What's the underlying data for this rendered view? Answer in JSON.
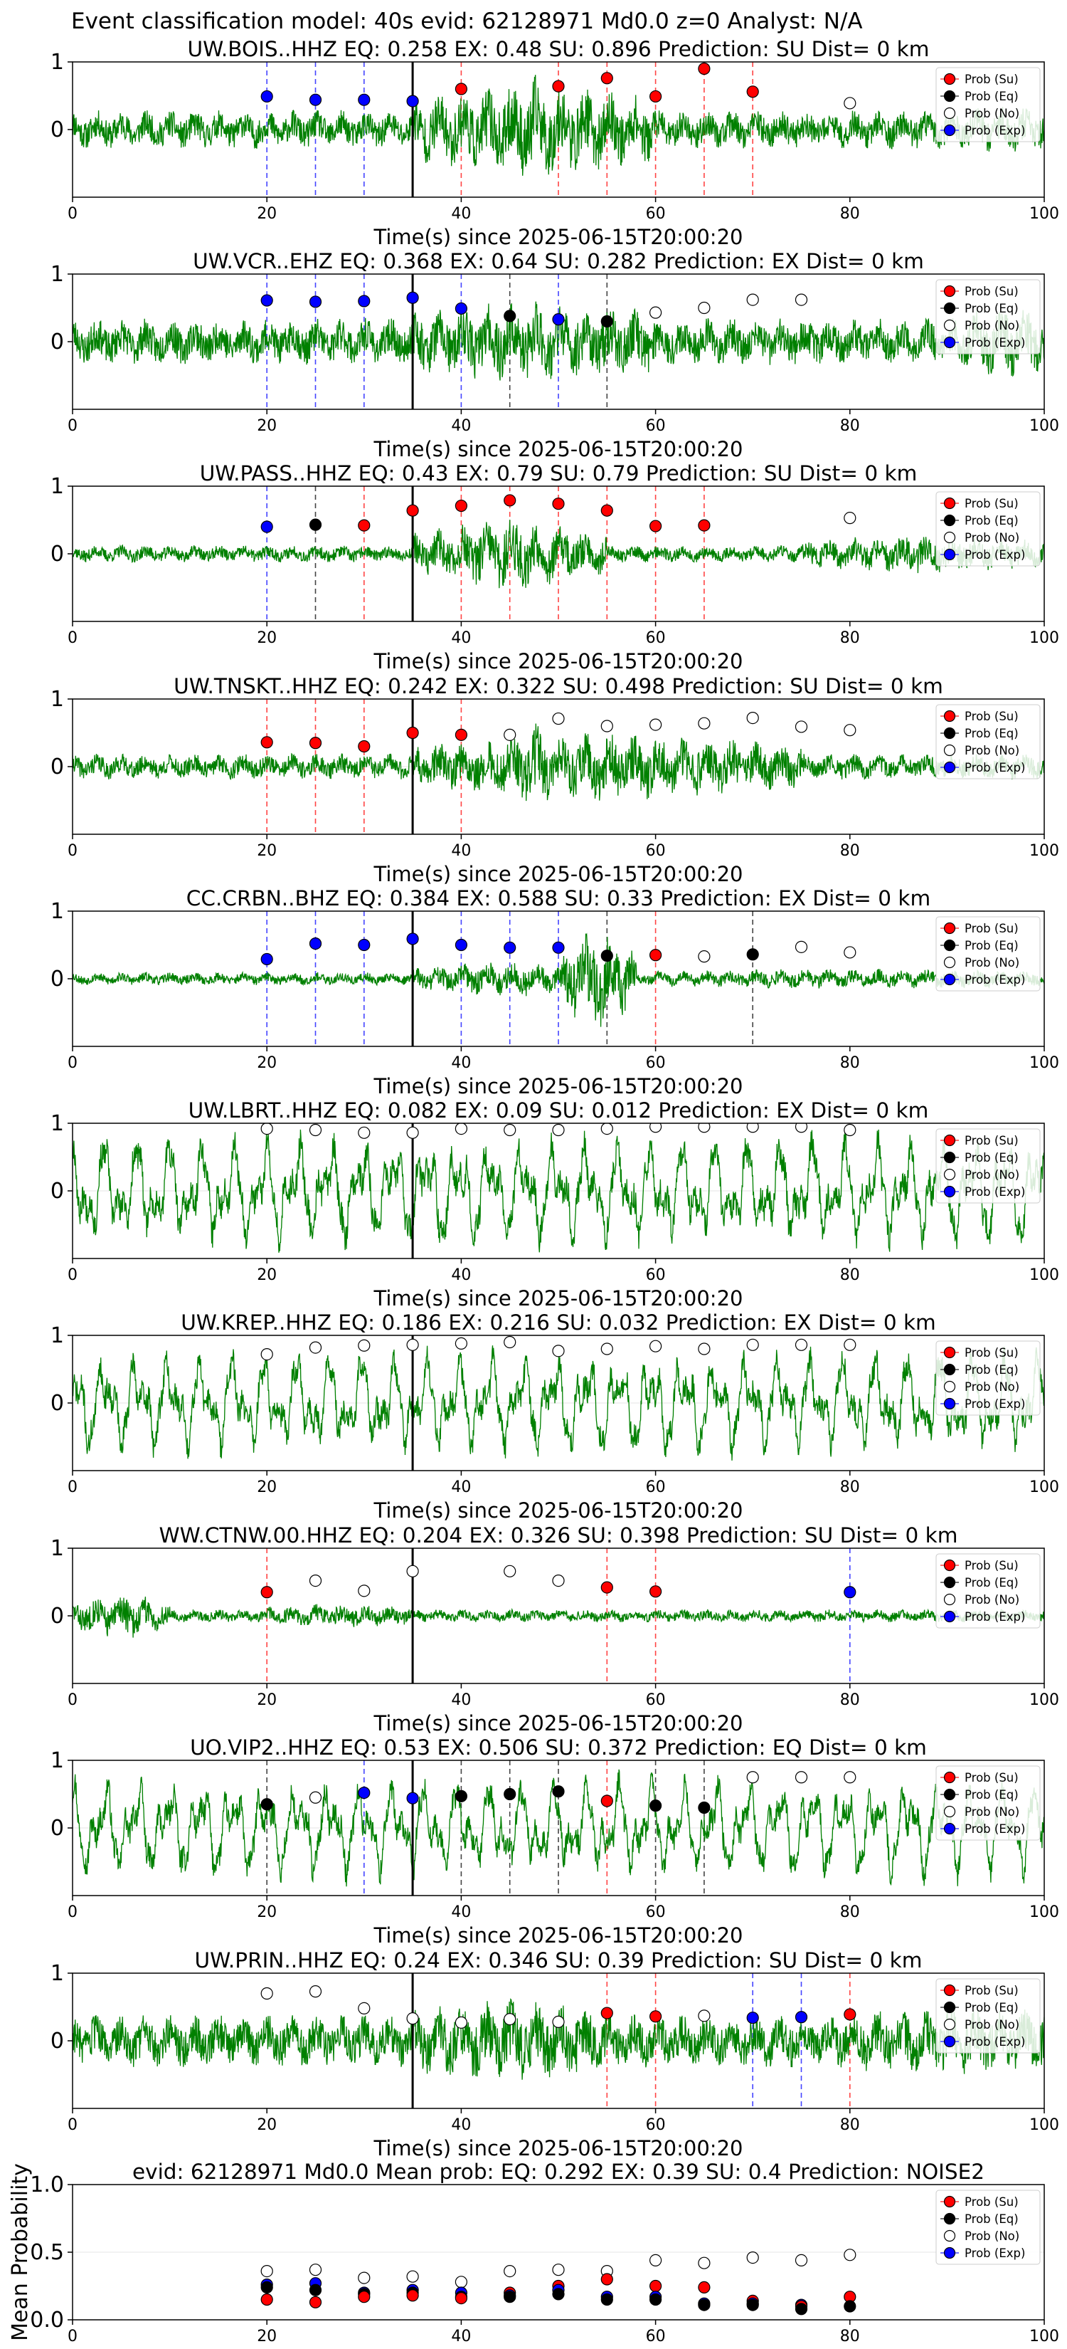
{
  "suptitle": "Event classification model: 40s evid: 62128971 Md0.0 z=0 Analyst: N/A",
  "xlabel": "Time(s) since 2025-06-15T20:00:20",
  "legend": [
    "Prob (Su)",
    "Prob (Eq)",
    "Prob (No)",
    "Prob (Exp)"
  ],
  "colors": {
    "su": "#ff0000",
    "eq": "#000000",
    "no": "#ffffff",
    "exp": "#0000ff",
    "waveform": "#008000",
    "su_line": "#ff4444",
    "eq_line": "#444444",
    "exp_line": "#4444ff"
  },
  "chart_data": [
    {
      "type": "line",
      "title": "UW.BOIS..HHZ   EQ: 0.258  EX: 0.48  SU: 0.896   Prediction: SU    Dist= 0 km",
      "xlim": [
        0,
        100
      ],
      "ylim": [
        -1,
        1
      ],
      "yticks": [
        0,
        1
      ],
      "xticks": [
        0,
        20,
        40,
        60,
        80,
        100
      ],
      "event_line": 35,
      "waveform": {
        "amp": 0.18,
        "seed": 11,
        "bursts": [
          [
            35,
            60,
            2.6
          ],
          [
            45,
            50,
            3.0
          ],
          [
            92,
            100,
            1.2
          ]
        ]
      },
      "points": [
        [
          20,
          0.49,
          "exp"
        ],
        [
          25,
          0.44,
          "exp"
        ],
        [
          30,
          0.44,
          "exp"
        ],
        [
          35,
          0.42,
          "exp"
        ],
        [
          40,
          0.6,
          "su"
        ],
        [
          50,
          0.64,
          "su"
        ],
        [
          55,
          0.76,
          "su"
        ],
        [
          60,
          0.49,
          "su"
        ],
        [
          65,
          0.9,
          "su"
        ],
        [
          70,
          0.56,
          "su"
        ],
        [
          80,
          0.39,
          "no"
        ]
      ]
    },
    {
      "type": "line",
      "title": "UW.VCR..EHZ   EQ: 0.368  EX: 0.64  SU: 0.282   Prediction: EX    Dist= 0 km",
      "xlim": [
        0,
        100
      ],
      "ylim": [
        -1,
        1
      ],
      "yticks": [
        0,
        1
      ],
      "xticks": [
        0,
        20,
        40,
        60,
        80,
        100
      ],
      "event_line": 35,
      "waveform": {
        "amp": 0.22,
        "seed": 23,
        "bursts": [
          [
            35,
            60,
            1.8
          ],
          [
            92,
            100,
            1.6
          ]
        ]
      },
      "points": [
        [
          20,
          0.61,
          "exp"
        ],
        [
          25,
          0.59,
          "exp"
        ],
        [
          30,
          0.6,
          "exp"
        ],
        [
          35,
          0.65,
          "exp"
        ],
        [
          40,
          0.49,
          "exp"
        ],
        [
          45,
          0.38,
          "eq"
        ],
        [
          50,
          0.33,
          "exp"
        ],
        [
          55,
          0.3,
          "eq"
        ],
        [
          60,
          0.43,
          "no"
        ],
        [
          65,
          0.5,
          "no"
        ],
        [
          70,
          0.62,
          "no"
        ],
        [
          75,
          0.62,
          "no"
        ]
      ]
    },
    {
      "type": "line",
      "title": "UW.PASS..HHZ   EQ: 0.43  EX: 0.79  SU: 0.79   Prediction: SU    Dist= 0 km",
      "xlim": [
        0,
        100
      ],
      "ylim": [
        -1,
        1
      ],
      "yticks": [
        0,
        1
      ],
      "xticks": [
        0,
        20,
        40,
        60,
        80,
        100
      ],
      "event_line": 35,
      "waveform": {
        "amp": 0.08,
        "seed": 37,
        "bursts": [
          [
            35,
            55,
            4.5
          ],
          [
            75,
            100,
            2.5
          ]
        ]
      },
      "points": [
        [
          20,
          0.4,
          "exp"
        ],
        [
          25,
          0.43,
          "eq"
        ],
        [
          30,
          0.42,
          "su"
        ],
        [
          35,
          0.64,
          "su"
        ],
        [
          40,
          0.71,
          "su"
        ],
        [
          45,
          0.79,
          "su"
        ],
        [
          50,
          0.74,
          "su"
        ],
        [
          55,
          0.64,
          "su"
        ],
        [
          60,
          0.41,
          "su"
        ],
        [
          65,
          0.42,
          "su"
        ],
        [
          80,
          0.53,
          "no"
        ]
      ]
    },
    {
      "type": "line",
      "title": "UW.TNSKT..HHZ   EQ: 0.242  EX: 0.322  SU: 0.498   Prediction: SU    Dist= 0 km",
      "xlim": [
        0,
        100
      ],
      "ylim": [
        -1,
        1
      ],
      "yticks": [
        0,
        1
      ],
      "xticks": [
        0,
        20,
        40,
        60,
        80,
        100
      ],
      "event_line": 35,
      "waveform": {
        "amp": 0.12,
        "seed": 41,
        "bursts": [
          [
            35,
            75,
            2.8
          ],
          [
            45,
            50,
            3.5
          ]
        ]
      },
      "points": [
        [
          20,
          0.36,
          "su"
        ],
        [
          25,
          0.35,
          "su"
        ],
        [
          30,
          0.3,
          "su"
        ],
        [
          35,
          0.5,
          "su"
        ],
        [
          40,
          0.47,
          "su"
        ],
        [
          45,
          0.47,
          "no"
        ],
        [
          50,
          0.71,
          "no"
        ],
        [
          55,
          0.6,
          "no"
        ],
        [
          60,
          0.62,
          "no"
        ],
        [
          65,
          0.64,
          "no"
        ],
        [
          70,
          0.72,
          "no"
        ],
        [
          75,
          0.59,
          "no"
        ],
        [
          80,
          0.54,
          "no"
        ]
      ]
    },
    {
      "type": "line",
      "title": "CC.CRBN..BHZ   EQ: 0.384  EX: 0.588  SU: 0.33   Prediction: EX    Dist= 0 km",
      "xlim": [
        0,
        100
      ],
      "ylim": [
        -1,
        1
      ],
      "yticks": [
        0,
        1
      ],
      "xticks": [
        0,
        20,
        40,
        60,
        80,
        100
      ],
      "event_line": 35,
      "waveform": {
        "amp": 0.06,
        "seed": 53,
        "bursts": [
          [
            35,
            55,
            3.0
          ],
          [
            50,
            58,
            9.0
          ],
          [
            60,
            100,
            1.6
          ]
        ]
      },
      "points": [
        [
          20,
          0.29,
          "exp"
        ],
        [
          25,
          0.52,
          "exp"
        ],
        [
          30,
          0.5,
          "exp"
        ],
        [
          35,
          0.59,
          "exp"
        ],
        [
          40,
          0.5,
          "exp"
        ],
        [
          45,
          0.46,
          "exp"
        ],
        [
          50,
          0.46,
          "exp"
        ],
        [
          55,
          0.34,
          "eq"
        ],
        [
          60,
          0.35,
          "su"
        ],
        [
          65,
          0.33,
          "no"
        ],
        [
          70,
          0.36,
          "eq"
        ],
        [
          75,
          0.47,
          "no"
        ],
        [
          80,
          0.39,
          "no"
        ]
      ]
    },
    {
      "type": "line",
      "title": "UW.LBRT..HHZ   EQ: 0.082  EX: 0.09  SU: 0.012   Prediction: EX    Dist= 0 km",
      "xlim": [
        0,
        100
      ],
      "ylim": [
        -1,
        1
      ],
      "yticks": [
        0,
        1
      ],
      "xticks": [
        0,
        20,
        40,
        60,
        80,
        100
      ],
      "event_line": 35,
      "waveform": {
        "amp": 0.45,
        "seed": 67,
        "smooth": true,
        "bursts": []
      },
      "points": [
        [
          20,
          0.92,
          "no"
        ],
        [
          25,
          0.9,
          "no"
        ],
        [
          30,
          0.86,
          "no"
        ],
        [
          35,
          0.86,
          "no"
        ],
        [
          40,
          0.92,
          "no"
        ],
        [
          45,
          0.9,
          "no"
        ],
        [
          50,
          0.9,
          "no"
        ],
        [
          55,
          0.92,
          "no"
        ],
        [
          60,
          0.95,
          "no"
        ],
        [
          65,
          0.95,
          "no"
        ],
        [
          70,
          0.95,
          "no"
        ],
        [
          75,
          0.95,
          "no"
        ],
        [
          80,
          0.9,
          "no"
        ]
      ]
    },
    {
      "type": "line",
      "title": "UW.KREP..HHZ   EQ: 0.186  EX: 0.216  SU: 0.032   Prediction: EX    Dist= 0 km",
      "xlim": [
        0,
        100
      ],
      "ylim": [
        -1,
        1
      ],
      "yticks": [
        0,
        1
      ],
      "xticks": [
        0,
        20,
        40,
        60,
        80,
        100
      ],
      "event_line": 35,
      "waveform": {
        "amp": 0.42,
        "seed": 71,
        "smooth": true,
        "bursts": []
      },
      "points": [
        [
          20,
          0.72,
          "no"
        ],
        [
          25,
          0.82,
          "no"
        ],
        [
          30,
          0.85,
          "no"
        ],
        [
          35,
          0.86,
          "no"
        ],
        [
          40,
          0.88,
          "no"
        ],
        [
          45,
          0.9,
          "no"
        ],
        [
          50,
          0.77,
          "no"
        ],
        [
          55,
          0.8,
          "no"
        ],
        [
          60,
          0.84,
          "no"
        ],
        [
          65,
          0.8,
          "no"
        ],
        [
          70,
          0.86,
          "no"
        ],
        [
          75,
          0.86,
          "no"
        ],
        [
          80,
          0.86,
          "no"
        ]
      ]
    },
    {
      "type": "line",
      "title": "WW.CTNW.00.HHZ   EQ: 0.204  EX: 0.326  SU: 0.398   Prediction: SU    Dist= 0 km",
      "xlim": [
        0,
        100
      ],
      "ylim": [
        -1,
        1
      ],
      "yticks": [
        0,
        1
      ],
      "xticks": [
        0,
        20,
        40,
        60,
        80,
        100
      ],
      "event_line": 35,
      "waveform": {
        "amp": 0.06,
        "seed": 83,
        "bursts": [
          [
            0,
            10,
            4.0
          ],
          [
            20,
            35,
            2.0
          ]
        ]
      },
      "points": [
        [
          20,
          0.35,
          "su"
        ],
        [
          25,
          0.52,
          "no"
        ],
        [
          30,
          0.37,
          "no"
        ],
        [
          35,
          0.66,
          "no"
        ],
        [
          45,
          0.66,
          "no"
        ],
        [
          50,
          0.52,
          "no"
        ],
        [
          55,
          0.42,
          "su"
        ],
        [
          60,
          0.36,
          "su"
        ],
        [
          80,
          0.35,
          "exp"
        ]
      ]
    },
    {
      "type": "line",
      "title": "UO.VIP2..HHZ   EQ: 0.53  EX: 0.506  SU: 0.372   Prediction: EQ    Dist= 0 km",
      "xlim": [
        0,
        100
      ],
      "ylim": [
        -1,
        1
      ],
      "yticks": [
        0,
        1
      ],
      "xticks": [
        0,
        20,
        40,
        60,
        80,
        100
      ],
      "event_line": 35,
      "waveform": {
        "amp": 0.4,
        "seed": 97,
        "smooth": true,
        "bursts": []
      },
      "points": [
        [
          20,
          0.35,
          "eq"
        ],
        [
          25,
          0.45,
          "no"
        ],
        [
          30,
          0.52,
          "exp"
        ],
        [
          35,
          0.44,
          "exp"
        ],
        [
          40,
          0.47,
          "eq"
        ],
        [
          45,
          0.5,
          "eq"
        ],
        [
          50,
          0.54,
          "eq"
        ],
        [
          55,
          0.4,
          "su"
        ],
        [
          60,
          0.33,
          "eq"
        ],
        [
          65,
          0.3,
          "eq"
        ],
        [
          70,
          0.75,
          "no"
        ],
        [
          75,
          0.75,
          "no"
        ],
        [
          80,
          0.75,
          "no"
        ]
      ]
    },
    {
      "type": "line",
      "title": "UW.PRIN..HHZ   EQ: 0.24  EX: 0.346  SU: 0.39   Prediction: SU    Dist= 0 km",
      "xlim": [
        0,
        100
      ],
      "ylim": [
        -1,
        1
      ],
      "yticks": [
        0,
        1
      ],
      "xticks": [
        0,
        20,
        40,
        60,
        80,
        100
      ],
      "event_line": 35,
      "waveform": {
        "amp": 0.25,
        "seed": 103,
        "bursts": [
          [
            35,
            55,
            1.6
          ],
          [
            80,
            100,
            1.3
          ]
        ]
      },
      "points": [
        [
          20,
          0.7,
          "no"
        ],
        [
          25,
          0.73,
          "no"
        ],
        [
          30,
          0.48,
          "no"
        ],
        [
          35,
          0.33,
          "no"
        ],
        [
          40,
          0.27,
          "no"
        ],
        [
          45,
          0.32,
          "no"
        ],
        [
          50,
          0.28,
          "no"
        ],
        [
          55,
          0.41,
          "su"
        ],
        [
          60,
          0.36,
          "su"
        ],
        [
          65,
          0.37,
          "no"
        ],
        [
          70,
          0.34,
          "exp"
        ],
        [
          75,
          0.35,
          "exp"
        ],
        [
          80,
          0.39,
          "su"
        ]
      ]
    },
    {
      "type": "scatter",
      "title": "evid: 62128971  Md0.0   Mean prob:   EQ: 0.292  EX: 0.39  SU: 0.4   Prediction: NOISE2",
      "ylabel": "Mean Probability",
      "xlim": [
        0,
        100
      ],
      "ylim": [
        0,
        1
      ],
      "yticks": [
        0.0,
        0.5,
        1.0
      ],
      "ytick_labels": [
        "0.0",
        "0.5",
        "1.0"
      ],
      "xticks": [
        0,
        20,
        40,
        60,
        80,
        100
      ],
      "points": [
        [
          20,
          0.36,
          "no"
        ],
        [
          20,
          0.26,
          "exp"
        ],
        [
          20,
          0.24,
          "eq"
        ],
        [
          20,
          0.15,
          "su"
        ],
        [
          25,
          0.37,
          "no"
        ],
        [
          25,
          0.27,
          "exp"
        ],
        [
          25,
          0.22,
          "eq"
        ],
        [
          25,
          0.13,
          "su"
        ],
        [
          30,
          0.31,
          "no"
        ],
        [
          30,
          0.2,
          "exp"
        ],
        [
          30,
          0.19,
          "eq"
        ],
        [
          30,
          0.17,
          "su"
        ],
        [
          35,
          0.32,
          "no"
        ],
        [
          35,
          0.22,
          "exp"
        ],
        [
          35,
          0.2,
          "eq"
        ],
        [
          35,
          0.18,
          "su"
        ],
        [
          40,
          0.28,
          "no"
        ],
        [
          40,
          0.2,
          "exp"
        ],
        [
          40,
          0.17,
          "eq"
        ],
        [
          40,
          0.16,
          "su"
        ],
        [
          45,
          0.36,
          "no"
        ],
        [
          45,
          0.2,
          "su"
        ],
        [
          45,
          0.18,
          "exp"
        ],
        [
          45,
          0.17,
          "eq"
        ],
        [
          50,
          0.37,
          "no"
        ],
        [
          50,
          0.25,
          "su"
        ],
        [
          50,
          0.22,
          "exp"
        ],
        [
          50,
          0.19,
          "eq"
        ],
        [
          55,
          0.36,
          "no"
        ],
        [
          55,
          0.3,
          "su"
        ],
        [
          55,
          0.17,
          "exp"
        ],
        [
          55,
          0.15,
          "eq"
        ],
        [
          60,
          0.44,
          "no"
        ],
        [
          60,
          0.25,
          "su"
        ],
        [
          60,
          0.17,
          "exp"
        ],
        [
          60,
          0.15,
          "eq"
        ],
        [
          65,
          0.42,
          "no"
        ],
        [
          65,
          0.24,
          "su"
        ],
        [
          65,
          0.12,
          "exp"
        ],
        [
          65,
          0.11,
          "eq"
        ],
        [
          70,
          0.46,
          "no"
        ],
        [
          70,
          0.14,
          "su"
        ],
        [
          70,
          0.12,
          "exp"
        ],
        [
          70,
          0.11,
          "eq"
        ],
        [
          75,
          0.44,
          "no"
        ],
        [
          75,
          0.11,
          "exp"
        ],
        [
          75,
          0.1,
          "su"
        ],
        [
          75,
          0.08,
          "eq"
        ],
        [
          80,
          0.48,
          "no"
        ],
        [
          80,
          0.17,
          "su"
        ],
        [
          80,
          0.1,
          "eq"
        ]
      ]
    }
  ]
}
